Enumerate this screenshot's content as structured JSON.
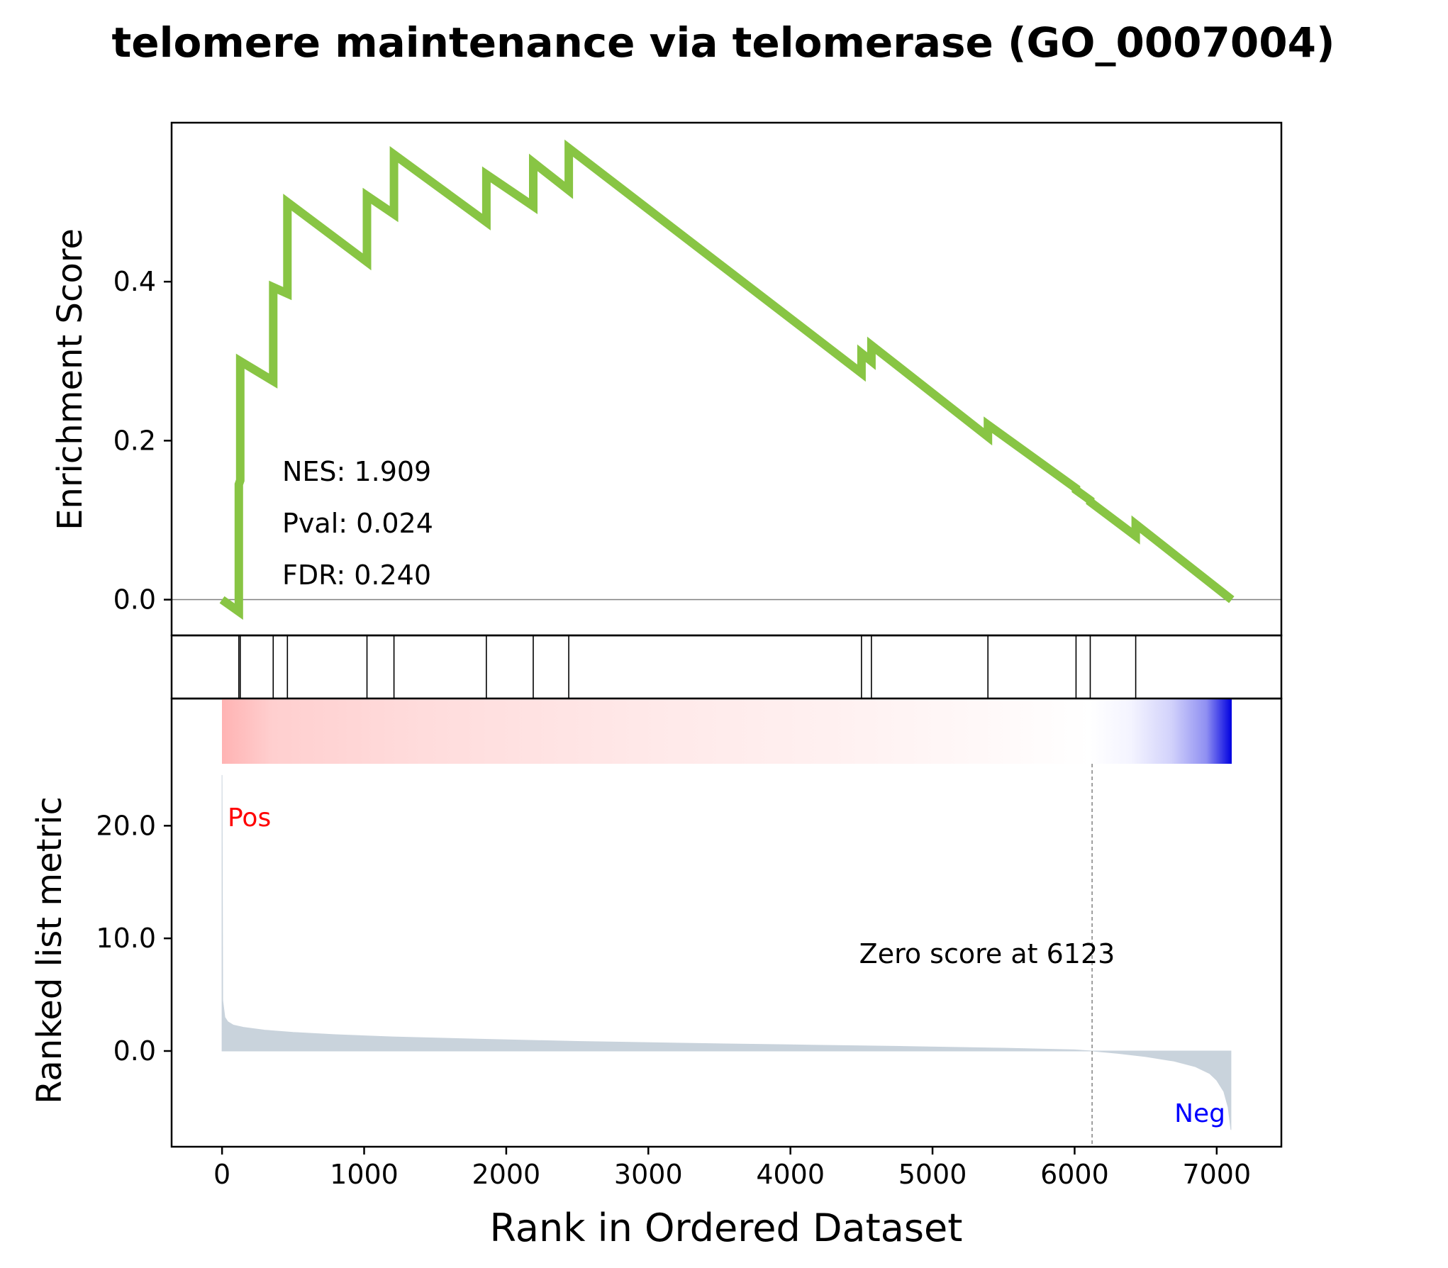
{
  "title": "telomere maintenance via telomerase (GO_0007004)",
  "colors": {
    "es_line": "#88C544",
    "pos": "#ff0000",
    "neg": "#0000ff",
    "metric_fill": "#c9d3dc",
    "zero_line": "#808080",
    "heat_pos": "#ffb6b6",
    "heat_mid": "#ffffff",
    "heat_neg": "#0000e6"
  },
  "chart_data": [
    {
      "panel": "enrichment",
      "type": "line",
      "ylabel": "Enrichment Score",
      "xlim": [
        -355,
        7455
      ],
      "ylim": [
        -0.045,
        0.6
      ],
      "yticks": [
        0.0,
        0.2,
        0.4
      ],
      "ytick_labels": [
        "0.0",
        "0.2",
        "0.4"
      ],
      "baseline": 0.0,
      "stats": [
        {
          "label": "NES: 1.909"
        },
        {
          "label": "Pval: 0.024"
        },
        {
          "label": "FDR: 0.240"
        }
      ],
      "x": [
        0,
        118,
        118,
        128,
        128,
        360,
        360,
        460,
        460,
        1020,
        1020,
        1210,
        1210,
        1860,
        1860,
        2190,
        2190,
        2440,
        2440,
        4500,
        4500,
        4570,
        4570,
        5390,
        5390,
        6010,
        6010,
        6110,
        6110,
        6430,
        6430,
        7105
      ],
      "y": [
        0.0,
        -0.015,
        0.145,
        0.15,
        0.3,
        0.275,
        0.393,
        0.385,
        0.5,
        0.425,
        0.508,
        0.485,
        0.56,
        0.475,
        0.535,
        0.495,
        0.55,
        0.515,
        0.568,
        0.285,
        0.31,
        0.3,
        0.32,
        0.205,
        0.22,
        0.14,
        0.138,
        0.125,
        0.123,
        0.08,
        0.095,
        0.0
      ]
    },
    {
      "panel": "hits",
      "type": "barcode",
      "positions": [
        118,
        128,
        360,
        460,
        1020,
        1210,
        1860,
        2190,
        2440,
        4500,
        4570,
        5390,
        6010,
        6110,
        6430
      ]
    },
    {
      "panel": "ranked_metric",
      "type": "area",
      "xlabel": "Rank in Ordered Dataset",
      "ylabel": "Ranked list metric",
      "xlim": [
        -355,
        7455
      ],
      "ylim": [
        -8.5,
        25.5
      ],
      "xticks": [
        0,
        1000,
        2000,
        3000,
        4000,
        5000,
        6000,
        7000
      ],
      "xtick_labels": [
        "0",
        "1000",
        "2000",
        "3000",
        "4000",
        "5000",
        "6000",
        "7000"
      ],
      "yticks": [
        0.0,
        10.0,
        20.0
      ],
      "ytick_labels": [
        "0.0",
        "10.0",
        "20.0"
      ],
      "pos_label": "Pos",
      "neg_label": "Neg",
      "zero_cross": 6123,
      "zero_cross_label": "Zero score at 6123",
      "x": [
        0,
        5,
        20,
        40,
        80,
        150,
        300,
        500,
        800,
        1200,
        1800,
        2500,
        3200,
        4000,
        4800,
        5500,
        6000,
        6123,
        6300,
        6500,
        6700,
        6850,
        6950,
        7000,
        7050,
        7080,
        7100
      ],
      "y": [
        24.5,
        4.5,
        3.0,
        2.6,
        2.3,
        2.1,
        1.85,
        1.65,
        1.45,
        1.25,
        1.05,
        0.85,
        0.7,
        0.55,
        0.4,
        0.25,
        0.1,
        0.0,
        -0.2,
        -0.5,
        -0.9,
        -1.4,
        -2.0,
        -2.6,
        -3.6,
        -5.0,
        -7.0
      ]
    }
  ]
}
